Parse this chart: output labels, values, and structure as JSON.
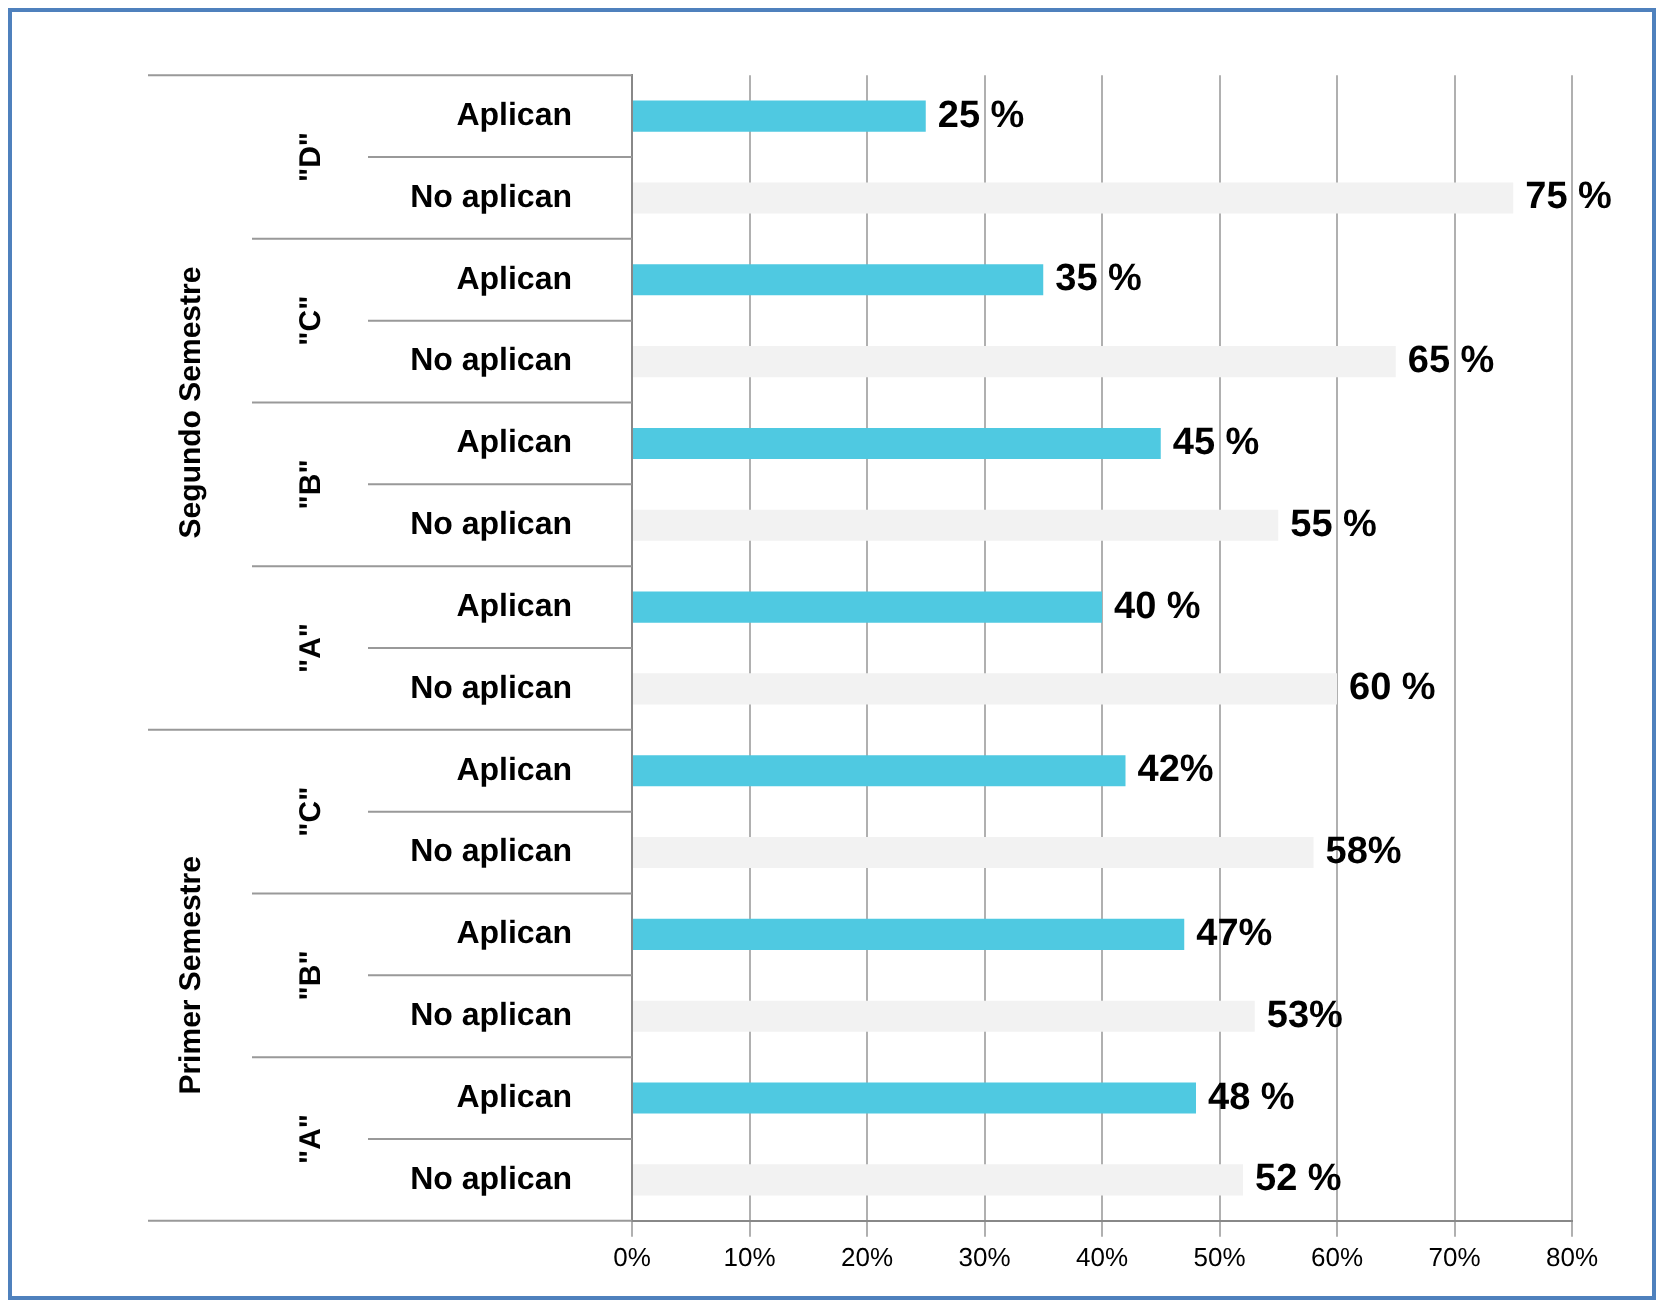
{
  "chart_data": {
    "type": "bar",
    "orientation": "horizontal",
    "categories": [
      "Aplican",
      "No aplican",
      "Aplican",
      "No aplican",
      "Aplican",
      "No aplican",
      "Aplican",
      "No aplican",
      "Aplican",
      "No aplican",
      "Aplican",
      "No aplican",
      "Aplican",
      "No aplican"
    ],
    "values": [
      25,
      75,
      35,
      65,
      45,
      55,
      40,
      60,
      42,
      58,
      47,
      53,
      48,
      52
    ],
    "colors": [
      "#4fc9e1",
      "#f2f2f2",
      "#4fc9e1",
      "#f2f2f2",
      "#4fc9e1",
      "#f2f2f2",
      "#4fc9e1",
      "#f2f2f2",
      "#4fc9e1",
      "#f2f2f2",
      "#4fc9e1",
      "#f2f2f2",
      "#4fc9e1",
      "#f2f2f2"
    ],
    "value_labels": [
      "25 %",
      "75 %",
      "35 %",
      "65 %",
      "45 %",
      "55 %",
      "40 %",
      "60 %",
      "42%",
      "58%",
      "47%",
      "53%",
      "48 %",
      "52 %"
    ],
    "xlim": [
      0,
      80
    ],
    "xticks": [
      {
        "value": 0,
        "label": "0%"
      },
      {
        "value": 10,
        "label": "10%"
      },
      {
        "value": 20,
        "label": "20%"
      },
      {
        "value": 30,
        "label": "30%"
      },
      {
        "value": 40,
        "label": "40%"
      },
      {
        "value": 50,
        "label": "50%"
      },
      {
        "value": 60,
        "label": "60%"
      },
      {
        "value": 70,
        "label": "70%"
      },
      {
        "value": 80,
        "label": "80%"
      }
    ],
    "annotations": [
      "Segundo Semestre",
      "\"D\"",
      "\"C\"",
      "\"B\"",
      "\"A\"",
      "Primer Semestre",
      "\"C\"",
      "\"B\"",
      "\"A\""
    ],
    "grid": "x",
    "legend": false
  }
}
